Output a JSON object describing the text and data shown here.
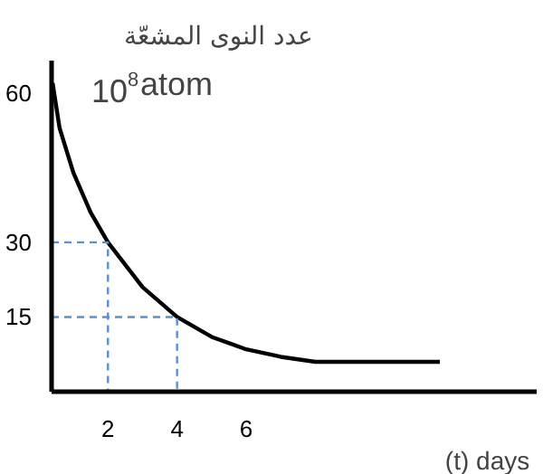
{
  "chart_data": {
    "type": "line",
    "ylabel": "عدد النوى المشعّة",
    "xlabel": "(t)  days",
    "annotations": [
      "10$^{8}$atom"
    ],
    "x": [
      0.4,
      0.6,
      1,
      1.5,
      2,
      3,
      4,
      5,
      6,
      7,
      8,
      9,
      11.6
    ],
    "series": [
      {
        "color": "#000000",
        "values": [
          62,
          53,
          44,
          36,
          30,
          21,
          15,
          11,
          8.5,
          7,
          6,
          6,
          6
        ]
      },
      {
        "type": "line",
        "line_style": "dashed",
        "color": "#5b8fd0",
        "x": [
          0.37,
          2,
          2
        ],
        "values": [
          30,
          30,
          0
        ]
      },
      {
        "type": "line",
        "line_style": "dashed",
        "color": "#5b8fd0",
        "x": [
          0.37,
          4,
          4
        ],
        "values": [
          15,
          15,
          0
        ]
      }
    ],
    "xlim": [
      0.37,
      14.4
    ],
    "ylim": [
      0,
      66.5
    ],
    "xticks": [
      2,
      4,
      6
    ],
    "yticks": [
      15,
      30,
      60
    ],
    "grid": false,
    "marker": "none",
    "line_style": "solid"
  }
}
